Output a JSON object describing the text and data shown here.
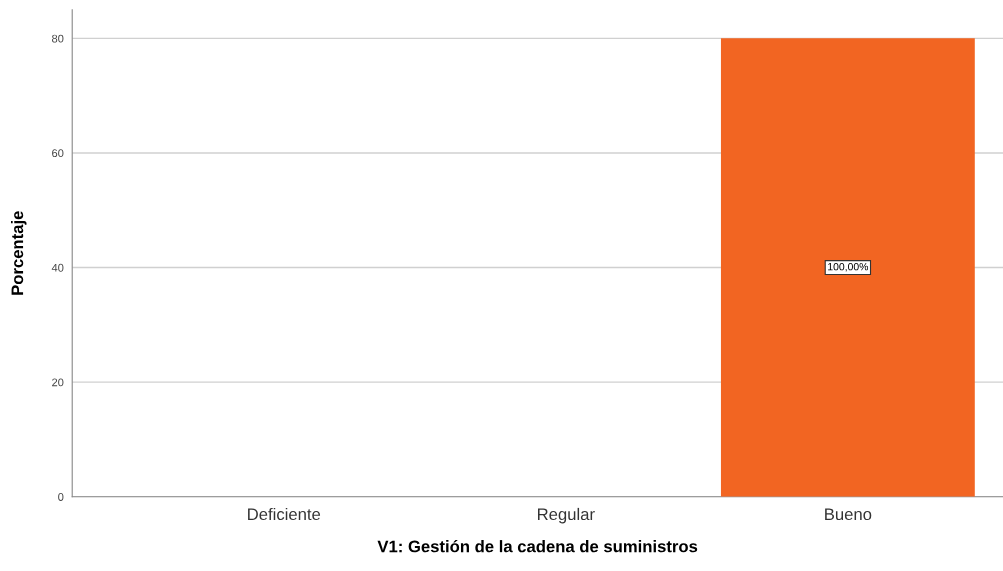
{
  "chart_data": {
    "type": "bar",
    "xlabel": "V1: Gestión de la cadena de suministros",
    "ylabel": "Porcentaje",
    "categories": [
      "Deficiente",
      "Regular",
      "Bueno"
    ],
    "values": [
      0,
      0,
      80
    ],
    "annotations": [
      "100,00%"
    ],
    "color": "#f26522",
    "ylim": [
      0,
      85
    ],
    "yticks": [
      0,
      20,
      40,
      60,
      80
    ],
    "grid": "y"
  }
}
